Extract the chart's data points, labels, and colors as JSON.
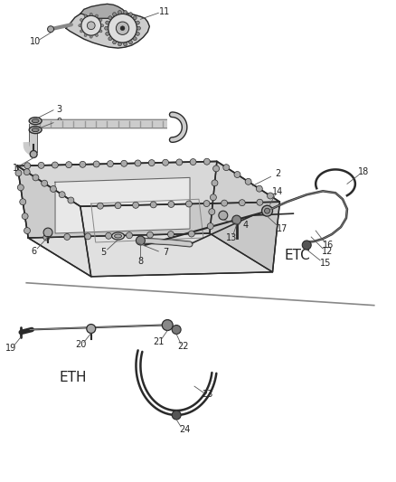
{
  "bg_color": "#ffffff",
  "lc": "#2a2a2a",
  "figsize": [
    4.38,
    5.33
  ],
  "dpi": 100
}
